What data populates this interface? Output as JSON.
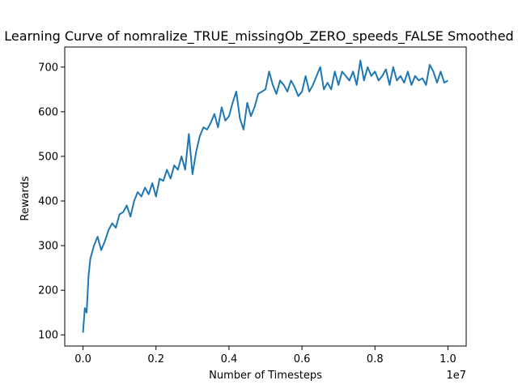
{
  "chart_data": {
    "type": "line",
    "title": "Learning Curve of nomralize_TRUE_missingOb_ZERO_speeds_FALSE Smoothed",
    "xlabel": "Number of Timesteps",
    "ylabel": "Rewards",
    "x_offset_label": "1e7",
    "xlim": [
      -0.05,
      1.05
    ],
    "ylim": [
      75,
      745
    ],
    "xticks": [
      0.0,
      0.2,
      0.4,
      0.6,
      0.8,
      1.0
    ],
    "xtick_labels": [
      "0.0",
      "0.2",
      "0.4",
      "0.6",
      "0.8",
      "1.0"
    ],
    "yticks": [
      100,
      200,
      300,
      400,
      500,
      600,
      700
    ],
    "ytick_labels": [
      "100",
      "200",
      "300",
      "400",
      "500",
      "600",
      "700"
    ],
    "grid": false,
    "line_color": "#1f77b4",
    "series": [
      {
        "x": [
          0.0,
          0.005,
          0.01,
          0.015,
          0.02,
          0.03,
          0.04,
          0.05,
          0.06,
          0.07,
          0.08,
          0.09,
          0.1,
          0.11,
          0.12,
          0.13,
          0.14,
          0.15,
          0.16,
          0.17,
          0.18,
          0.19,
          0.2,
          0.21,
          0.22,
          0.23,
          0.24,
          0.25,
          0.26,
          0.27,
          0.28,
          0.29,
          0.3,
          0.31,
          0.32,
          0.33,
          0.34,
          0.35,
          0.36,
          0.37,
          0.38,
          0.39,
          0.4,
          0.41,
          0.42,
          0.43,
          0.44,
          0.45,
          0.46,
          0.47,
          0.48,
          0.49,
          0.5,
          0.51,
          0.52,
          0.53,
          0.54,
          0.55,
          0.56,
          0.57,
          0.58,
          0.59,
          0.6,
          0.61,
          0.62,
          0.63,
          0.64,
          0.65,
          0.66,
          0.67,
          0.68,
          0.69,
          0.7,
          0.71,
          0.72,
          0.73,
          0.74,
          0.75,
          0.76,
          0.77,
          0.78,
          0.79,
          0.8,
          0.81,
          0.82,
          0.83,
          0.84,
          0.85,
          0.86,
          0.87,
          0.88,
          0.89,
          0.9,
          0.91,
          0.92,
          0.93,
          0.94,
          0.95,
          0.96,
          0.97,
          0.98,
          0.99,
          1.0
        ],
        "y": [
          105,
          160,
          150,
          230,
          270,
          300,
          320,
          290,
          310,
          335,
          350,
          340,
          370,
          375,
          390,
          365,
          400,
          420,
          410,
          430,
          415,
          440,
          410,
          450,
          445,
          470,
          450,
          480,
          470,
          500,
          470,
          550,
          460,
          510,
          545,
          565,
          560,
          575,
          595,
          565,
          610,
          580,
          590,
          620,
          645,
          585,
          560,
          620,
          590,
          610,
          640,
          645,
          650,
          690,
          660,
          640,
          670,
          660,
          645,
          670,
          655,
          635,
          645,
          680,
          645,
          660,
          680,
          700,
          650,
          665,
          650,
          690,
          660,
          690,
          680,
          670,
          690,
          660,
          715,
          670,
          700,
          680,
          690,
          670,
          680,
          695,
          660,
          700,
          670,
          680,
          665,
          690,
          660,
          680,
          670,
          675,
          660,
          705,
          690,
          665,
          690,
          665,
          670
        ]
      }
    ]
  }
}
